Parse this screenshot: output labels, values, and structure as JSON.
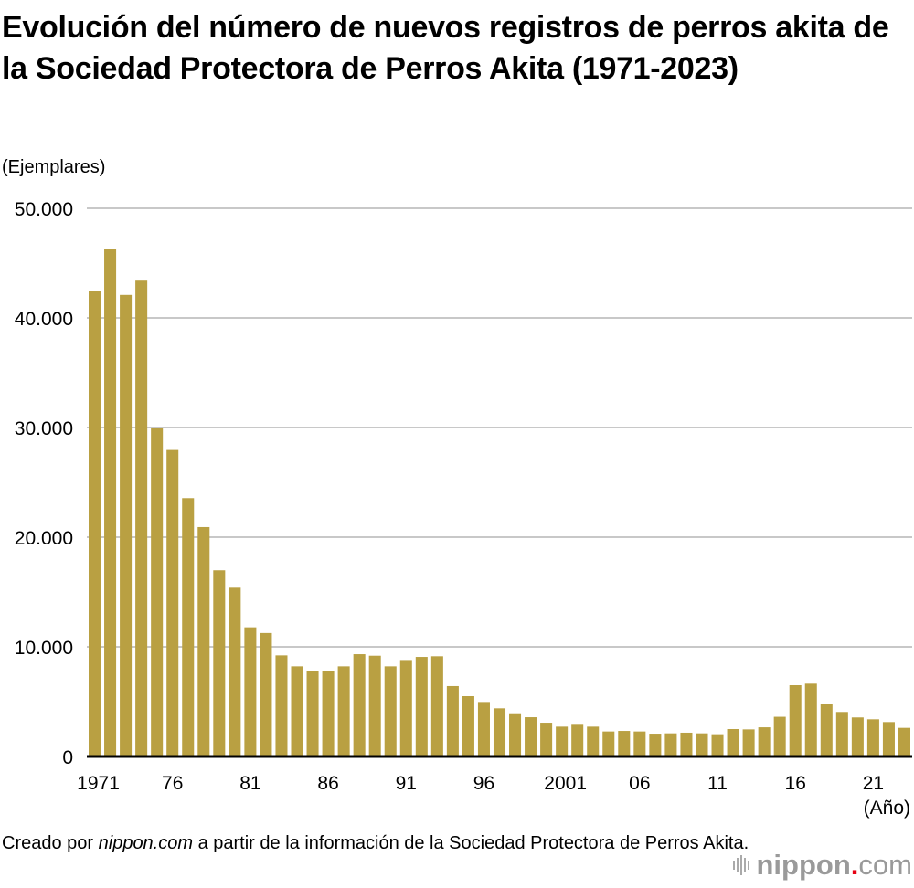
{
  "title": "Evolución del número de nuevos registros de perros akita de la Sociedad Protectora de Perros Akita (1971-2023)",
  "unit_label": "(Ejemplares)",
  "x_unit_label": "(Año)",
  "source": {
    "prefix": "Creado por ",
    "brand": "nippon.com",
    "suffix": " a partir de la información de la Sociedad Protectora de Perros Akita."
  },
  "logo": {
    "name": "nippon",
    "dot": ".",
    "tld": "com",
    "dot_color": "#e60012"
  },
  "colors": {
    "bar": "#b9a042",
    "grid": "#c8c8c8",
    "axis": "#000000"
  },
  "chart_data": {
    "type": "bar",
    "title": "Evolución del número de nuevos registros de perros akita de la Sociedad Protectora de Perros Akita (1971-2023)",
    "xlabel": "(Año)",
    "ylabel": "(Ejemplares)",
    "ylim": [
      0,
      50000
    ],
    "yticks": [
      0,
      10000,
      20000,
      30000,
      40000,
      50000
    ],
    "ytick_labels": [
      "0",
      "10.000",
      "20.000",
      "30.000",
      "40.000",
      "50.000"
    ],
    "grid": true,
    "xtick_labels": [
      {
        "year": 1971,
        "label": "1971"
      },
      {
        "year": 1976,
        "label": "76"
      },
      {
        "year": 1981,
        "label": "81"
      },
      {
        "year": 1986,
        "label": "86"
      },
      {
        "year": 1991,
        "label": "91"
      },
      {
        "year": 1996,
        "label": "96"
      },
      {
        "year": 2001,
        "label": "2001"
      },
      {
        "year": 2006,
        "label": "06"
      },
      {
        "year": 2011,
        "label": "11"
      },
      {
        "year": 2016,
        "label": "16"
      },
      {
        "year": 2021,
        "label": "21"
      }
    ],
    "categories": [
      1971,
      1972,
      1973,
      1974,
      1975,
      1976,
      1977,
      1978,
      1979,
      1980,
      1981,
      1982,
      1983,
      1984,
      1985,
      1986,
      1987,
      1988,
      1989,
      1990,
      1991,
      1992,
      1993,
      1994,
      1995,
      1996,
      1997,
      1998,
      1999,
      2000,
      2001,
      2002,
      2003,
      2004,
      2005,
      2006,
      2007,
      2008,
      2009,
      2010,
      2011,
      2012,
      2013,
      2014,
      2015,
      2016,
      2017,
      2018,
      2019,
      2020,
      2021,
      2022,
      2023
    ],
    "values": [
      42500,
      46250,
      42100,
      43400,
      30000,
      27950,
      23560,
      20920,
      16980,
      15390,
      11780,
      11260,
      9220,
      8220,
      7750,
      7800,
      8220,
      9330,
      9190,
      8220,
      8800,
      9080,
      9140,
      6420,
      5500,
      4970,
      4390,
      3940,
      3580,
      3080,
      2720,
      2890,
      2720,
      2280,
      2330,
      2280,
      2080,
      2110,
      2170,
      2110,
      2030,
      2500,
      2470,
      2660,
      3620,
      6500,
      6640,
      4750,
      4060,
      3560,
      3390,
      3140,
      2610
    ]
  }
}
